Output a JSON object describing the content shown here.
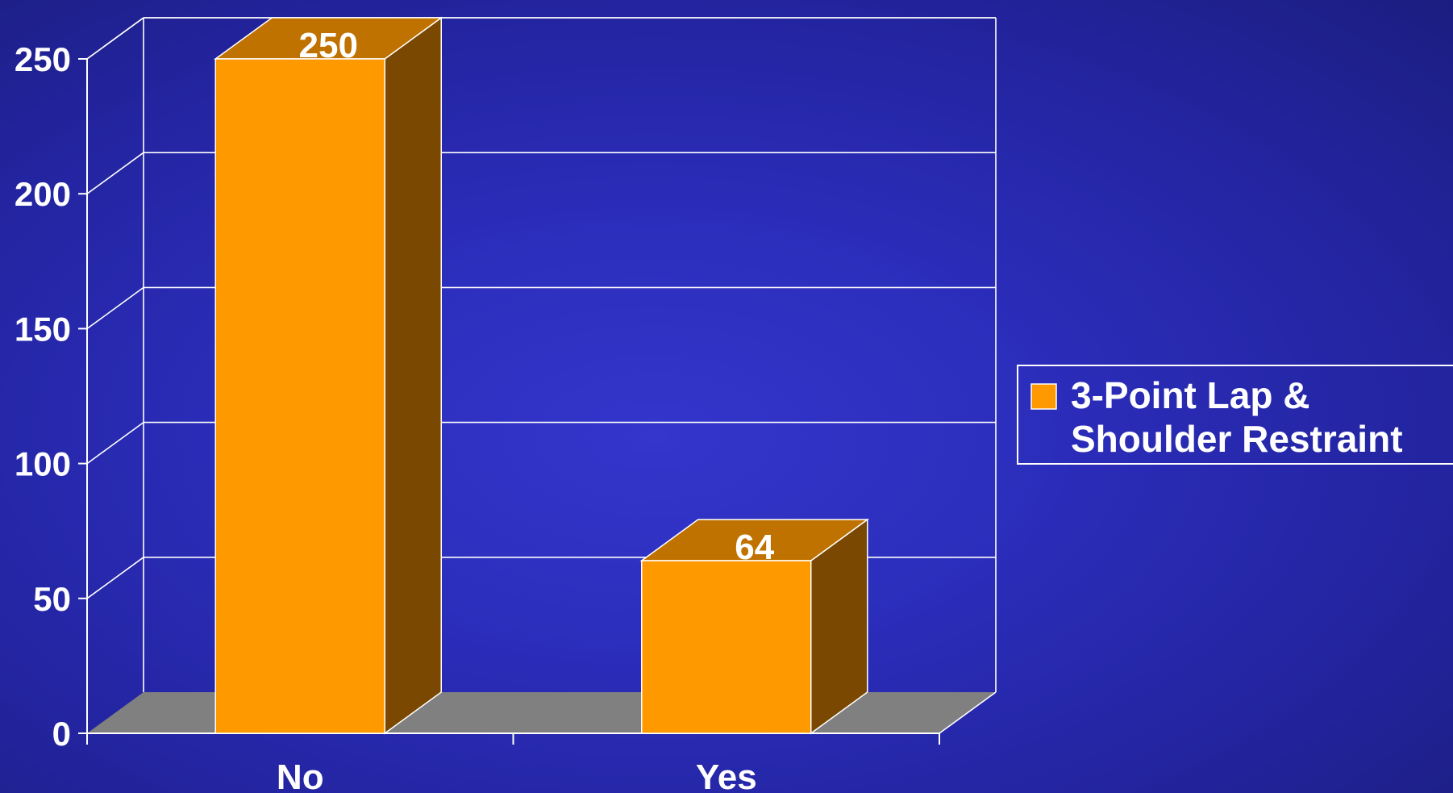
{
  "chart_data": {
    "type": "bar",
    "categories": [
      "No",
      "Yes"
    ],
    "series": [
      {
        "name": "3-Point Lap & Shoulder Restraint",
        "values": [
          250,
          64
        ]
      }
    ],
    "data_labels": [
      "250",
      "64"
    ],
    "ylim": [
      0,
      250
    ],
    "yticks": [
      0,
      50,
      100,
      150,
      200,
      250
    ],
    "ytick_labels": [
      "0",
      "50",
      "100",
      "150",
      "200",
      "250"
    ],
    "title": "",
    "xlabel": "",
    "ylabel": "",
    "grid": true,
    "legend_position": "right",
    "legend_lines": [
      "3-Point Lap &",
      "Shoulder Restraint"
    ],
    "three_d": true,
    "colors": {
      "bar_front": "#ff9900",
      "bar_top": "#c07200",
      "bar_side": "#7a4800",
      "floor": "#808080",
      "axis": "#ffffff"
    }
  }
}
